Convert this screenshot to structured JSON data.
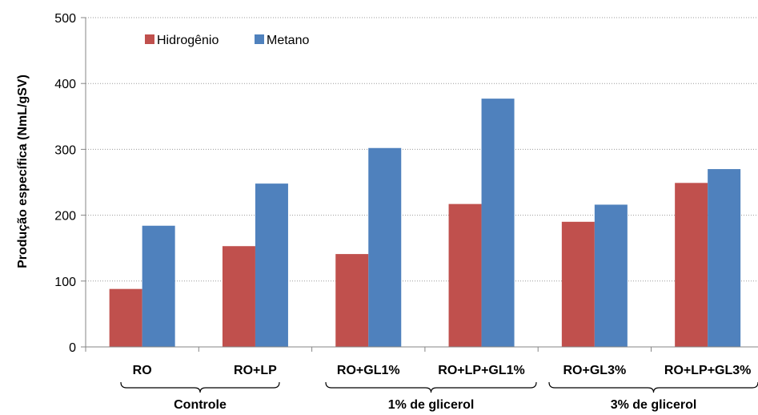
{
  "chart_data": {
    "type": "bar",
    "title": "",
    "xlabel": "",
    "ylabel": "Produção específica (NmL/gSV)",
    "ylim": [
      0,
      500
    ],
    "yticks": [
      0,
      100,
      200,
      300,
      400,
      500
    ],
    "grid": true,
    "legend_position": "top-left",
    "categories": [
      "RO",
      "RO+LP",
      "RO+GL1%",
      "RO+LP+GL1%",
      "RO+GL3%",
      "RO+LP+GL3%"
    ],
    "groups": [
      {
        "label": "Controle",
        "categories": [
          "RO",
          "RO+LP"
        ]
      },
      {
        "label": "1% de glicerol",
        "categories": [
          "RO+GL1%",
          "RO+LP+GL1%"
        ]
      },
      {
        "label": "3% de glicerol",
        "categories": [
          "RO+GL3%",
          "RO+LP+GL3%"
        ]
      }
    ],
    "series": [
      {
        "name": "Hidrogênio",
        "color": "#c0504d",
        "values": [
          88,
          153,
          141,
          217,
          190,
          249
        ]
      },
      {
        "name": "Metano",
        "color": "#4f81bd",
        "values": [
          184,
          248,
          302,
          377,
          216,
          270
        ]
      }
    ]
  }
}
